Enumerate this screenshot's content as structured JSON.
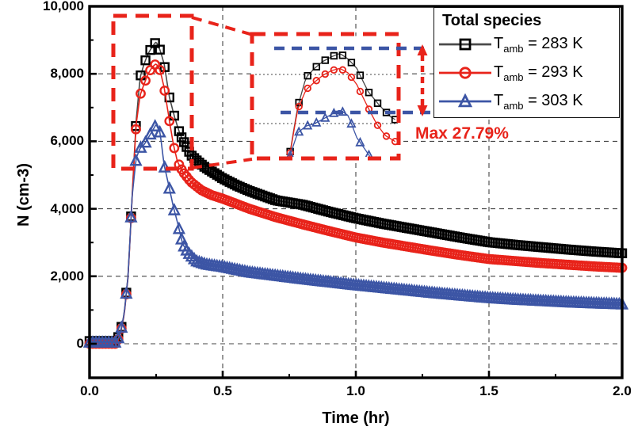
{
  "figure": {
    "background": "#ffffff"
  },
  "axes": {
    "x_label": "Time (hr)",
    "y_label": "N (cm-3)",
    "x_ticks": [
      {
        "value": 0,
        "label": "0.0"
      },
      {
        "value": 0.5,
        "label": "0.5"
      },
      {
        "value": 1,
        "label": "1.0"
      },
      {
        "value": 1.5,
        "label": "1.5"
      },
      {
        "value": 2,
        "label": "2.0"
      }
    ],
    "x_minor_ticks": [
      0.25,
      0.75,
      1.25,
      1.75
    ],
    "y_ticks": [
      {
        "value": 0,
        "label": "0"
      },
      {
        "value": 2000,
        "label": "2,000"
      },
      {
        "value": 4000,
        "label": "4,000"
      },
      {
        "value": 6000,
        "label": "6,000"
      },
      {
        "value": 8000,
        "label": "8,000"
      },
      {
        "value": 10000,
        "label": "10,000"
      }
    ],
    "y_minor_ticks": [
      1000,
      3000,
      5000,
      7000,
      9000
    ],
    "grid_style": "dashed at major ticks"
  },
  "legend": {
    "title": "Total species",
    "items": [
      {
        "id": "amb-283",
        "pre": "T",
        "sub": "amb",
        "post": " = 283 K",
        "marker": "square",
        "line_color": "#4a4a4a",
        "marker_color": "#000000"
      },
      {
        "id": "amb-293",
        "pre": "T",
        "sub": "amb",
        "post": " = 293 K",
        "marker": "circle",
        "line_color": "#e8231a",
        "marker_color": "#e8231a"
      },
      {
        "id": "amb-303",
        "pre": "T",
        "sub": "amb",
        "post": " = 303 K",
        "marker": "triangle",
        "line_color": "#3c55a5",
        "marker_color": "#3c55a5"
      }
    ]
  },
  "annotations": {
    "max_label": "Max 27.79%",
    "max_color": "#e8231a",
    "upper_reference_n": 9170,
    "lower_reference_n": 6390,
    "zoom_region": {
      "t_range": [
        0.09,
        0.384
      ],
      "n_range": [
        5200,
        9700
      ]
    },
    "inset_view": {
      "t_range": [
        0.1,
        0.35
      ],
      "n_range": [
        4500,
        9650
      ]
    },
    "ref_line_color": "#3c55a5",
    "zoom_box_color": "#e8231a"
  },
  "chart_data": {
    "type": "line",
    "title": "",
    "xlabel": "Time (hr)",
    "ylabel": "N (cm-3)",
    "xlim": [
      0,
      2
    ],
    "ylim": [
      -1000,
      10000
    ],
    "legend_position": "upper right",
    "grid": true,
    "series": [
      {
        "name": "Tamb = 283 K",
        "marker": "square",
        "line_color": "#4a4a4a",
        "marker_color": "#000000",
        "peak": {
          "t": 0.25,
          "n": 8950
        },
        "points": [
          [
            0,
            80
          ],
          [
            0.05,
            80
          ],
          [
            0.1,
            80
          ],
          [
            0.115,
            300
          ],
          [
            0.13,
            900
          ],
          [
            0.145,
            2050
          ],
          [
            0.16,
            4400
          ],
          [
            0.175,
            6600
          ],
          [
            0.19,
            7900
          ],
          [
            0.205,
            8300
          ],
          [
            0.22,
            8600
          ],
          [
            0.235,
            8800
          ],
          [
            0.25,
            8950
          ],
          [
            0.265,
            8700
          ],
          [
            0.28,
            8300
          ],
          [
            0.3,
            7300
          ],
          [
            0.32,
            6700
          ],
          [
            0.34,
            6200
          ],
          [
            0.36,
            5900
          ],
          [
            0.38,
            5600
          ],
          [
            0.4,
            5450
          ],
          [
            0.43,
            5250
          ],
          [
            0.46,
            5100
          ],
          [
            0.5,
            4900
          ],
          [
            0.55,
            4700
          ],
          [
            0.6,
            4530
          ],
          [
            0.7,
            4250
          ],
          [
            0.8,
            4120
          ],
          [
            0.9,
            3910
          ],
          [
            1.0,
            3720
          ],
          [
            1.1,
            3560
          ],
          [
            1.2,
            3420
          ],
          [
            1.3,
            3280
          ],
          [
            1.4,
            3140
          ],
          [
            1.5,
            3010
          ],
          [
            1.6,
            2930
          ],
          [
            1.7,
            2860
          ],
          [
            1.8,
            2790
          ],
          [
            1.9,
            2730
          ],
          [
            2.0,
            2680
          ]
        ]
      },
      {
        "name": "Tamb = 293 K",
        "marker": "circle",
        "line_color": "#e8231a",
        "marker_color": "#e8231a",
        "peak": {
          "t": 0.25,
          "n": 8300
        },
        "points": [
          [
            0,
            0
          ],
          [
            0.05,
            0
          ],
          [
            0.1,
            0
          ],
          [
            0.115,
            250
          ],
          [
            0.13,
            850
          ],
          [
            0.145,
            2000
          ],
          [
            0.16,
            4350
          ],
          [
            0.175,
            6500
          ],
          [
            0.19,
            7370
          ],
          [
            0.205,
            7700
          ],
          [
            0.22,
            8000
          ],
          [
            0.235,
            8200
          ],
          [
            0.25,
            8300
          ],
          [
            0.265,
            8100
          ],
          [
            0.28,
            7600
          ],
          [
            0.3,
            6600
          ],
          [
            0.315,
            5900
          ],
          [
            0.33,
            5400
          ],
          [
            0.35,
            5100
          ],
          [
            0.38,
            4800
          ],
          [
            0.42,
            4550
          ],
          [
            0.46,
            4400
          ],
          [
            0.5,
            4300
          ],
          [
            0.55,
            4150
          ],
          [
            0.6,
            4000
          ],
          [
            0.7,
            3750
          ],
          [
            0.8,
            3540
          ],
          [
            0.9,
            3340
          ],
          [
            1.0,
            3150
          ],
          [
            1.1,
            3000
          ],
          [
            1.2,
            2870
          ],
          [
            1.3,
            2740
          ],
          [
            1.4,
            2620
          ],
          [
            1.5,
            2510
          ],
          [
            1.6,
            2450
          ],
          [
            1.7,
            2390
          ],
          [
            1.8,
            2340
          ],
          [
            1.9,
            2290
          ],
          [
            2.0,
            2250
          ]
        ]
      },
      {
        "name": "Tamb = 303 K",
        "marker": "triangle",
        "line_color": "#3c55a5",
        "marker_color": "#3c55a5",
        "peak": {
          "t": 0.25,
          "n": 6500
        },
        "points": [
          [
            0,
            40
          ],
          [
            0.05,
            40
          ],
          [
            0.1,
            40
          ],
          [
            0.115,
            280
          ],
          [
            0.13,
            880
          ],
          [
            0.145,
            2020
          ],
          [
            0.16,
            4380
          ],
          [
            0.175,
            5500
          ],
          [
            0.19,
            5800
          ],
          [
            0.205,
            5900
          ],
          [
            0.22,
            6100
          ],
          [
            0.235,
            6300
          ],
          [
            0.25,
            6500
          ],
          [
            0.265,
            6250
          ],
          [
            0.28,
            5300
          ],
          [
            0.3,
            4600
          ],
          [
            0.315,
            4050
          ],
          [
            0.33,
            3600
          ],
          [
            0.35,
            2950
          ],
          [
            0.37,
            2700
          ],
          [
            0.4,
            2450
          ],
          [
            0.44,
            2350
          ],
          [
            0.5,
            2280
          ],
          [
            0.6,
            2120
          ],
          [
            0.7,
            2020
          ],
          [
            0.8,
            1920
          ],
          [
            0.9,
            1830
          ],
          [
            1.0,
            1740
          ],
          [
            1.1,
            1660
          ],
          [
            1.2,
            1580
          ],
          [
            1.3,
            1500
          ],
          [
            1.4,
            1430
          ],
          [
            1.5,
            1360
          ],
          [
            1.6,
            1310
          ],
          [
            1.7,
            1270
          ],
          [
            1.8,
            1230
          ],
          [
            1.9,
            1200
          ],
          [
            2.0,
            1170
          ]
        ]
      }
    ]
  }
}
